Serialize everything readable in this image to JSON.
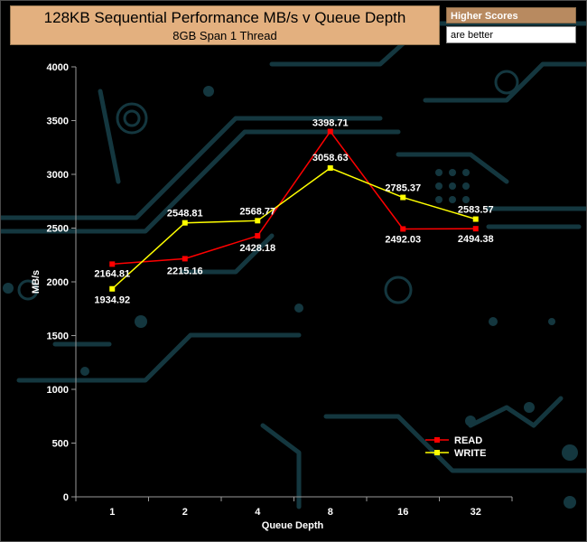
{
  "header": {
    "title": "128KB Sequential Performance MB/s v Queue Depth",
    "subtitle": "8GB Span 1 Thread"
  },
  "note": {
    "line1": "Higher Scores",
    "line2": "are better"
  },
  "colors": {
    "title_bg": "#e3b07f",
    "read": "#ff0000",
    "write": "#ffff00",
    "axis": "#9a9a9a",
    "background": "#000000",
    "circuit": "#14373f"
  },
  "chart_data": {
    "type": "line",
    "title": "128KB Sequential Performance MB/s v Queue Depth",
    "subtitle": "8GB Span 1 Thread",
    "xlabel": "Queue Depth",
    "ylabel": "MB/s",
    "categories": [
      "1",
      "2",
      "4",
      "8",
      "16",
      "32"
    ],
    "ylim": [
      0,
      4000
    ],
    "yticks": [
      0,
      500,
      1000,
      1500,
      2000,
      2500,
      3000,
      3500,
      4000
    ],
    "grid": false,
    "legend_position": "bottom-right",
    "series": [
      {
        "name": "READ",
        "color": "#ff0000",
        "values": [
          2164.81,
          2215.16,
          2428.18,
          3398.71,
          2492.03,
          2494.38
        ],
        "labels": [
          "2164.81",
          "2215.16",
          "2428.18",
          "3398.71",
          "2492.03",
          "2494.38"
        ]
      },
      {
        "name": "WRITE",
        "color": "#ffff00",
        "values": [
          1934.92,
          2548.81,
          2568.77,
          3058.63,
          2785.37,
          2583.57
        ],
        "labels": [
          "1934.92",
          "2548.81",
          "2568.77",
          "3058.63",
          "2785.37",
          "2583.57"
        ]
      }
    ]
  }
}
